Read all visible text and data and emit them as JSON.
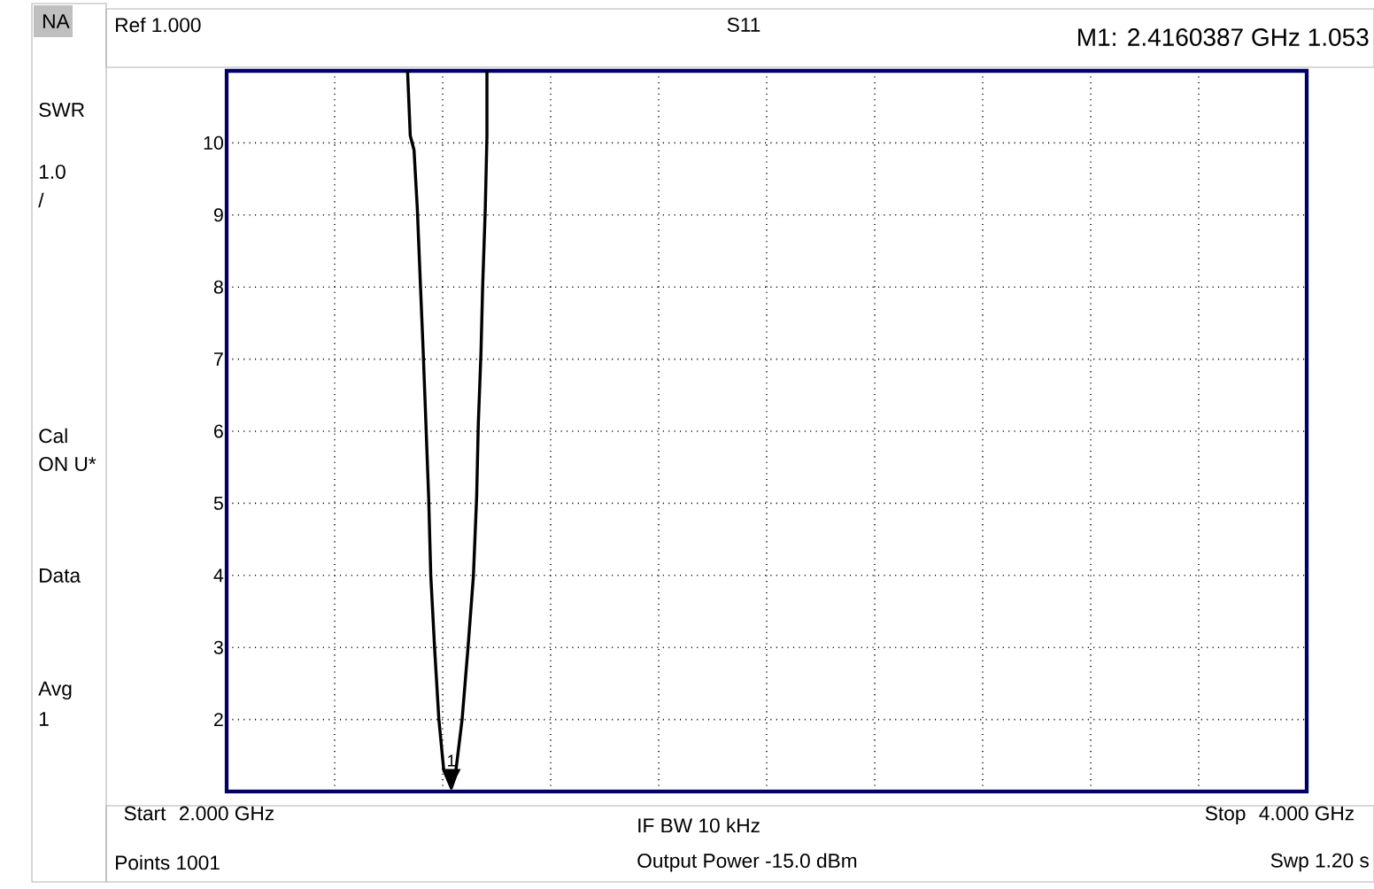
{
  "chart_data": {
    "type": "line",
    "title": "S11",
    "annotations": [
      "NA",
      "SWR",
      "1.0",
      "/",
      "Cal",
      "ON U*",
      "Data",
      "Avg",
      "1",
      "Ref 1.000",
      "M1:  2.4160387 GHz     1.053",
      {
        "text": "1",
        "x": 2.416,
        "y": 1.05
      },
      "Start",
      "IF BW 10 kHz",
      "Stop",
      "Points 1001",
      "Output Power -15.0 dBm",
      "Swp 1.20 s"
    ],
    "series": [
      {
        "color": "#000000",
        "x": [
          2.335,
          2.34,
          2.347,
          2.353,
          2.359,
          2.364,
          2.369,
          2.374,
          2.378,
          2.385,
          2.393,
          2.402,
          2.416,
          2.423,
          2.436,
          2.447,
          2.457,
          2.463,
          2.466,
          2.471,
          2.474,
          2.479,
          2.482,
          2.482
        ],
        "values": [
          11,
          10.1,
          9.9,
          9.1,
          8.0,
          7.1,
          6.1,
          5.1,
          4.0,
          3.0,
          2.0,
          1.3,
          1.05,
          1.2,
          2.0,
          3.0,
          4.0,
          5.1,
          6.1,
          7.1,
          8.0,
          9.1,
          10.1,
          11
        ]
      }
    ],
    "xlim": [
      2,
      4
    ],
    "xticks": [
      {
        "value": 2,
        "label": "2.000 GHz"
      },
      {
        "value": 2.2,
        "label": null
      },
      {
        "value": 2.4,
        "label": null
      },
      {
        "value": 2.6,
        "label": null
      },
      {
        "value": 2.8,
        "label": null
      },
      {
        "value": 3,
        "label": null
      },
      {
        "value": 3.2,
        "label": null
      },
      {
        "value": 3.4,
        "label": null
      },
      {
        "value": 3.6,
        "label": null
      },
      {
        "value": 3.8,
        "label": null
      },
      {
        "value": 4,
        "label": "4.000 GHz"
      }
    ],
    "ylim": [
      1,
      11
    ],
    "yticks": [
      {
        "value": 1,
        "label": null
      },
      2,
      3,
      4,
      5,
      6,
      7,
      8,
      9,
      10,
      {
        "value": 11,
        "label": null
      }
    ],
    "grid": true,
    "marker": "none",
    "line_style": "solid"
  }
}
